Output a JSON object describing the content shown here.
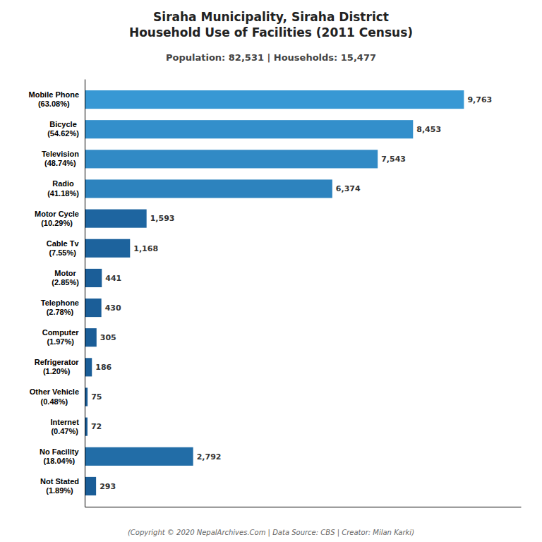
{
  "chart_data": {
    "type": "bar",
    "orientation": "horizontal",
    "title": "Siraha Municipality, Siraha District\nHousehold Use of Facilities (2011 Census)",
    "subtitle": "Population: 82,531 | Households: 15,477",
    "annotations": [
      "(Copyright © 2020 NepalArchives.Com | Data Source: CBS | Creator: Milan Karki)"
    ],
    "categories": [
      "Mobile Phone\n(63.08%)",
      "Bicycle\n(54.62%)",
      "Television\n(48.74%)",
      "Radio\n(41.18%)",
      "Motor Cycle\n(10.29%)",
      "Cable Tv\n(7.55%)",
      "Motor\n(2.85%)",
      "Telephone\n(2.78%)",
      "Computer\n(1.97%)",
      "Refrigerator\n(1.20%)",
      "Other Vehicle\n(0.48%)",
      "Internet\n(0.47%)",
      "No Facility\n(18.04%)",
      "Not Stated\n(1.89%)"
    ],
    "values": [
      9763,
      8453,
      7543,
      6374,
      1593,
      1168,
      441,
      430,
      305,
      186,
      75,
      72,
      2792,
      293
    ],
    "value_labels": [
      "9,763",
      "8,453",
      "7,543",
      "6,374",
      "1,593",
      "1,168",
      "441",
      "430",
      "305",
      "186",
      "75",
      "72",
      "2,792",
      "293"
    ],
    "colors": [
      "#3898d4",
      "#338fcb",
      "#318ac5",
      "#2d83be",
      "#1e65a0",
      "#1d639d",
      "#1b5e98",
      "#1b5e98",
      "#1a5d97",
      "#1a5d97",
      "#1a5c96",
      "#1a5c96",
      "#226da7",
      "#1a5d97"
    ],
    "xlim": [
      0,
      11227.45
    ],
    "xticks": [],
    "data_labels": true,
    "tick_labels": "y",
    "grid": false
  }
}
